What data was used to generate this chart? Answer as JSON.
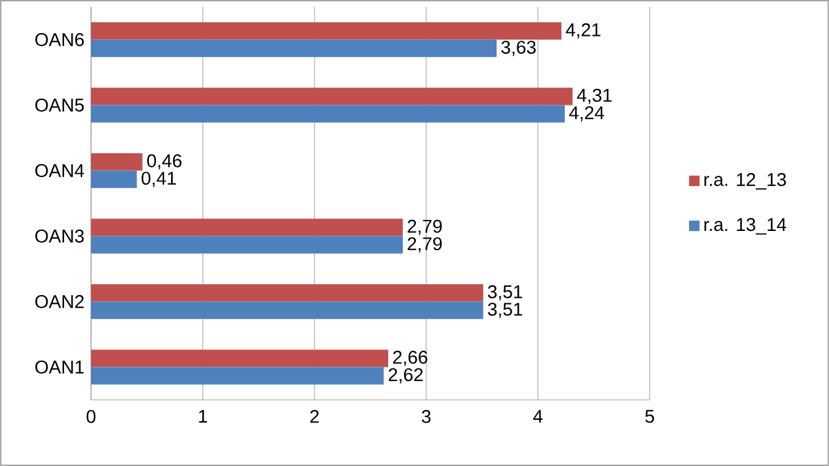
{
  "chart_data": {
    "type": "bar",
    "orientation": "horizontal",
    "categories": [
      "OAN6",
      "OAN5",
      "OAN4",
      "OAN3",
      "OAN2",
      "OAN1"
    ],
    "series": [
      {
        "name": "r.a. 12_13",
        "color": "#c0504d",
        "values": [
          4.21,
          4.31,
          0.46,
          2.79,
          3.51,
          2.66
        ],
        "value_labels": [
          "4,21",
          "4,31",
          "0,46",
          "2,79",
          "3,51",
          "2,66"
        ]
      },
      {
        "name": "r.a. 13_14",
        "color": "#4f81bd",
        "values": [
          3.63,
          4.24,
          0.41,
          2.79,
          3.51,
          2.62
        ],
        "value_labels": [
          "3,63",
          "4,24",
          "0,41",
          "2,79",
          "3,51",
          "2,62"
        ]
      }
    ],
    "xlim": [
      0,
      5
    ],
    "xticks": [
      0,
      1,
      2,
      3,
      4,
      5
    ],
    "grid": "x",
    "legend": "right"
  }
}
